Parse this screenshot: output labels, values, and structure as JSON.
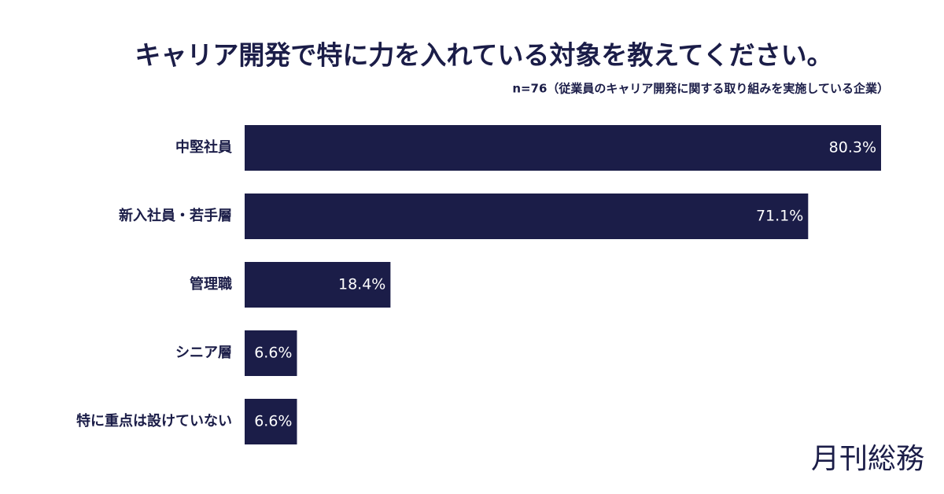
{
  "chart_data": {
    "type": "bar",
    "orientation": "horizontal",
    "title": "キャリア開発で特に力を入れている対象を教えてください。",
    "subtitle": "n=76（従業員のキャリア開発に関する取り組みを実施している企業）",
    "categories": [
      "中堅社員",
      "新入社員・若手層",
      "管理職",
      "シニア層",
      "特に重点は設けていない"
    ],
    "values": [
      80.3,
      71.1,
      18.4,
      6.6,
      6.6
    ],
    "value_labels": [
      "80.3%",
      "71.1%",
      "18.4%",
      "6.6%",
      "6.6%"
    ],
    "color": "#1b1d48",
    "brand": "月刊総務"
  }
}
